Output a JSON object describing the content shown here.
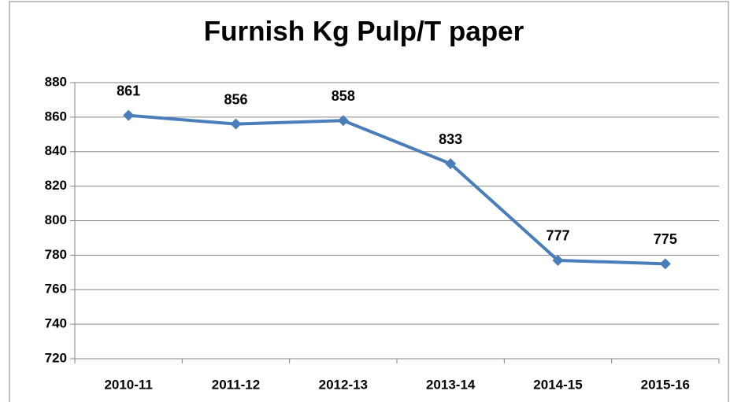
{
  "chart_data": {
    "type": "line",
    "title": "Furnish Kg Pulp/T paper",
    "categories": [
      "2010-11",
      "2011-12",
      "2012-13",
      "2013-14",
      "2014-15",
      "2015-16"
    ],
    "series": [
      {
        "name": "Furnish Kg Pulp/T paper",
        "color": "#4a7ebb",
        "values": [
          861,
          856,
          858,
          833,
          777,
          775
        ]
      }
    ],
    "ylim": [
      720,
      880
    ],
    "yticks": [
      720,
      740,
      760,
      780,
      800,
      820,
      840,
      860,
      880
    ],
    "grid": true
  }
}
